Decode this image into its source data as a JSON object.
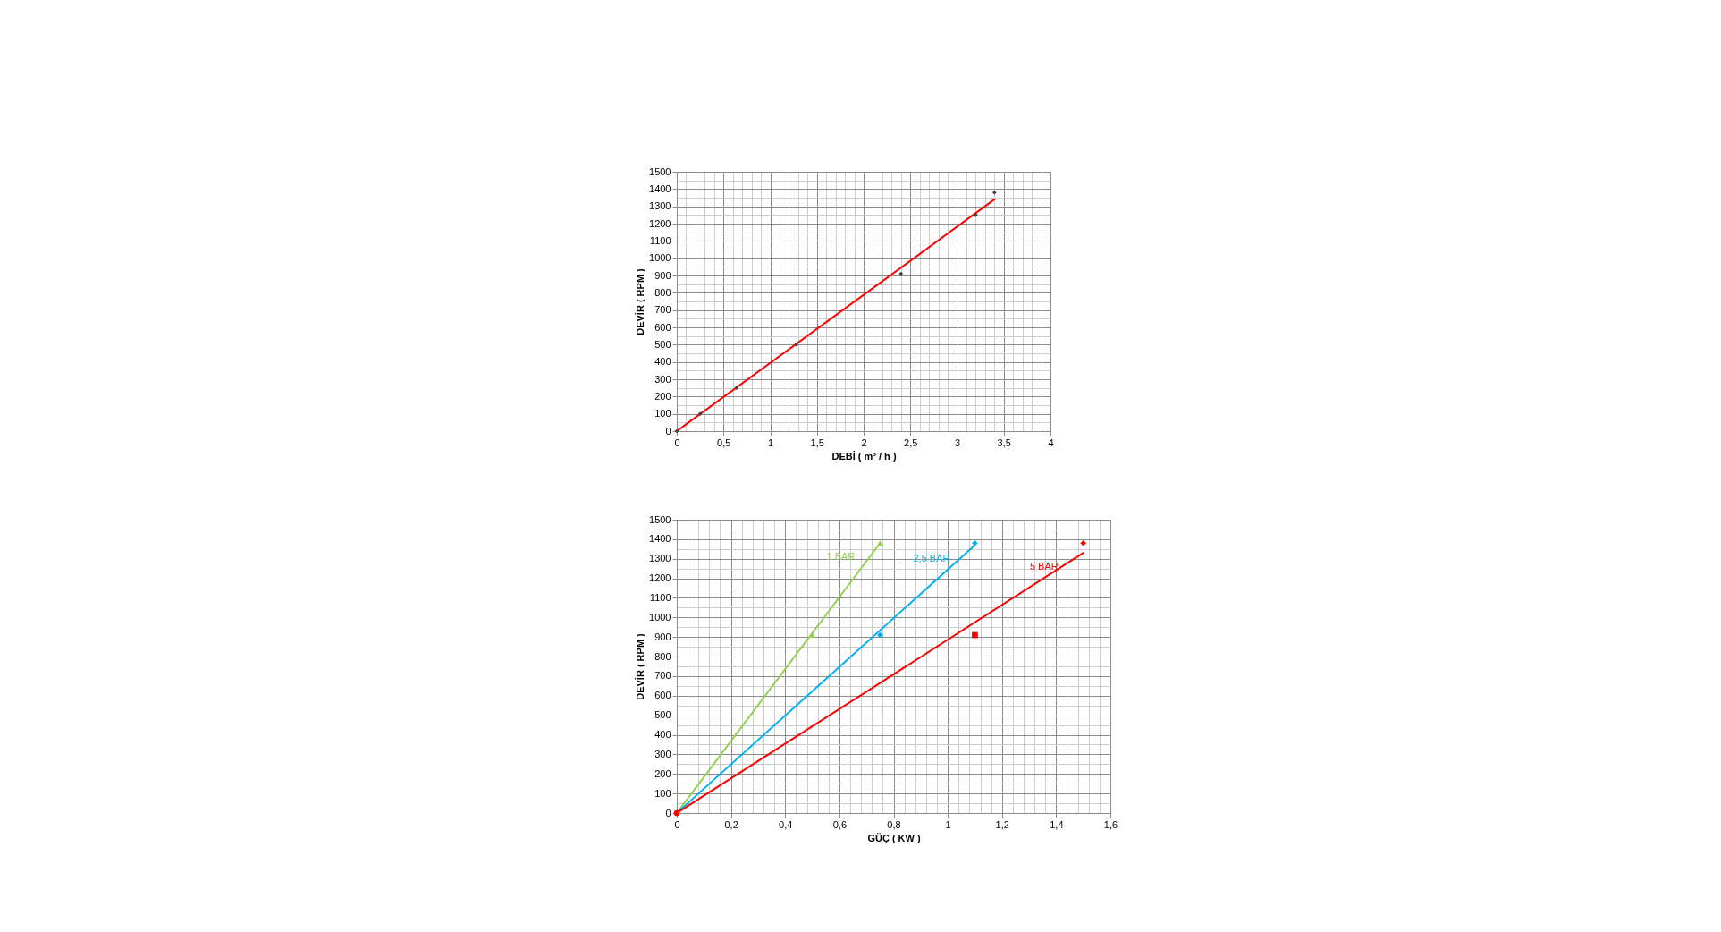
{
  "chart_data": [
    {
      "type": "scatter",
      "xlabel": "DEBİ ( m³ / h )",
      "ylabel": "DEVİR ( RPM )",
      "xlim": [
        0,
        4
      ],
      "ylim": [
        0,
        1500
      ],
      "grid": true,
      "xticks": [
        0,
        {
          "value": 0.1,
          "label": null
        },
        {
          "value": 0.2,
          "label": null
        },
        {
          "value": 0.3,
          "label": null
        },
        {
          "value": 0.4,
          "label": null
        },
        {
          "value": 0.5,
          "label": "0,5"
        },
        {
          "value": 0.6,
          "label": null
        },
        {
          "value": 0.7,
          "label": null
        },
        {
          "value": 0.8,
          "label": null
        },
        {
          "value": 0.9,
          "label": null
        },
        1,
        {
          "value": 1.1,
          "label": null
        },
        {
          "value": 1.2,
          "label": null
        },
        {
          "value": 1.3,
          "label": null
        },
        {
          "value": 1.4,
          "label": null
        },
        {
          "value": 1.5,
          "label": "1,5"
        },
        {
          "value": 1.6,
          "label": null
        },
        {
          "value": 1.7,
          "label": null
        },
        {
          "value": 1.8,
          "label": null
        },
        {
          "value": 1.9,
          "label": null
        },
        2,
        {
          "value": 2.1,
          "label": null
        },
        {
          "value": 2.2,
          "label": null
        },
        {
          "value": 2.3,
          "label": null
        },
        {
          "value": 2.4,
          "label": null
        },
        {
          "value": 2.5,
          "label": "2,5"
        },
        {
          "value": 2.6,
          "label": null
        },
        {
          "value": 2.7,
          "label": null
        },
        {
          "value": 2.8,
          "label": null
        },
        {
          "value": 2.9,
          "label": null
        },
        3,
        {
          "value": 3.1,
          "label": null
        },
        {
          "value": 3.2,
          "label": null
        },
        {
          "value": 3.3,
          "label": null
        },
        {
          "value": 3.4,
          "label": null
        },
        {
          "value": 3.5,
          "label": "3,5"
        },
        {
          "value": 3.6,
          "label": null
        },
        {
          "value": 3.7,
          "label": null
        },
        {
          "value": 3.8,
          "label": null
        },
        {
          "value": 3.9,
          "label": null
        },
        4
      ],
      "yticks": [
        0,
        {
          "value": 50,
          "label": null
        },
        100,
        {
          "value": 150,
          "label": null
        },
        200,
        {
          "value": 250,
          "label": null
        },
        300,
        {
          "value": 350,
          "label": null
        },
        400,
        {
          "value": 450,
          "label": null
        },
        500,
        {
          "value": 550,
          "label": null
        },
        600,
        {
          "value": 650,
          "label": null
        },
        700,
        {
          "value": 750,
          "label": null
        },
        800,
        {
          "value": 850,
          "label": null
        },
        900,
        {
          "value": 950,
          "label": null
        },
        1000,
        {
          "value": 1050,
          "label": null
        },
        1100,
        {
          "value": 1150,
          "label": null
        },
        1200,
        {
          "value": 1250,
          "label": null
        },
        1300,
        {
          "value": 1350,
          "label": null
        },
        1400,
        {
          "value": 1450,
          "label": null
        },
        1500
      ],
      "series": [
        {
          "type": "line",
          "color": "#ff0000",
          "x": [
            0,
            3.4
          ],
          "values": [
            0,
            1340
          ]
        },
        {
          "color": "#404040",
          "marker": "diamond",
          "x": [
            0,
            0.25,
            0.64,
            1.28,
            2.4,
            3.2,
            3.4
          ],
          "values": [
            0,
            100,
            250,
            500,
            910,
            1250,
            1380
          ]
        }
      ]
    },
    {
      "type": "line",
      "xlabel": "GÜÇ ( KW )",
      "ylabel": "DEVİR ( RPM )",
      "xlim": [
        0,
        1.6
      ],
      "ylim": [
        0,
        1500
      ],
      "grid": true,
      "xticks": [
        0,
        {
          "value": 0.04,
          "label": null
        },
        {
          "value": 0.08,
          "label": null
        },
        {
          "value": 0.12,
          "label": null
        },
        {
          "value": 0.16,
          "label": null
        },
        {
          "value": 0.2,
          "label": "0,2"
        },
        {
          "value": 0.24,
          "label": null
        },
        {
          "value": 0.28,
          "label": null
        },
        {
          "value": 0.32,
          "label": null
        },
        {
          "value": 0.36,
          "label": null
        },
        {
          "value": 0.4,
          "label": "0,4"
        },
        {
          "value": 0.44,
          "label": null
        },
        {
          "value": 0.48,
          "label": null
        },
        {
          "value": 0.52,
          "label": null
        },
        {
          "value": 0.56,
          "label": null
        },
        {
          "value": 0.6,
          "label": "0,6"
        },
        {
          "value": 0.64,
          "label": null
        },
        {
          "value": 0.68,
          "label": null
        },
        {
          "value": 0.72,
          "label": null
        },
        {
          "value": 0.76,
          "label": null
        },
        {
          "value": 0.8,
          "label": "0,8"
        },
        {
          "value": 0.84,
          "label": null
        },
        {
          "value": 0.88,
          "label": null
        },
        {
          "value": 0.92,
          "label": null
        },
        {
          "value": 0.96,
          "label": null
        },
        1,
        {
          "value": 1.04,
          "label": null
        },
        {
          "value": 1.08,
          "label": null
        },
        {
          "value": 1.12,
          "label": null
        },
        {
          "value": 1.16,
          "label": null
        },
        {
          "value": 1.2,
          "label": "1,2"
        },
        {
          "value": 1.24,
          "label": null
        },
        {
          "value": 1.28,
          "label": null
        },
        {
          "value": 1.32,
          "label": null
        },
        {
          "value": 1.36,
          "label": null
        },
        {
          "value": 1.4,
          "label": "1,4"
        },
        {
          "value": 1.44,
          "label": null
        },
        {
          "value": 1.48,
          "label": null
        },
        {
          "value": 1.52,
          "label": null
        },
        {
          "value": 1.56,
          "label": null
        },
        {
          "value": 1.6,
          "label": "1,6"
        }
      ],
      "yticks": [
        0,
        {
          "value": 50,
          "label": null
        },
        100,
        {
          "value": 150,
          "label": null
        },
        200,
        {
          "value": 250,
          "label": null
        },
        300,
        {
          "value": 350,
          "label": null
        },
        400,
        {
          "value": 450,
          "label": null
        },
        500,
        {
          "value": 550,
          "label": null
        },
        600,
        {
          "value": 650,
          "label": null
        },
        700,
        {
          "value": 750,
          "label": null
        },
        800,
        {
          "value": 850,
          "label": null
        },
        900,
        {
          "value": 950,
          "label": null
        },
        1000,
        {
          "value": 1050,
          "label": null
        },
        1100,
        {
          "value": 1150,
          "label": null
        },
        1200,
        {
          "value": 1250,
          "label": null
        },
        1300,
        {
          "value": 1350,
          "label": null
        },
        1400,
        {
          "value": 1450,
          "label": null
        },
        1500
      ],
      "series": [
        {
          "name": "1 BAR",
          "color": "#92d050",
          "x": [
            0,
            0.75
          ],
          "values": [
            0,
            1380
          ]
        },
        {
          "type": "scatter",
          "color": "#92d050",
          "marker": "triangle",
          "x": [
            0.5,
            0.75
          ],
          "values": [
            910,
            1380
          ]
        },
        {
          "name": "2,5 BAR",
          "color": "#00b0f0",
          "x": [
            0,
            1.1
          ],
          "values": [
            0,
            1370
          ]
        },
        {
          "type": "scatter",
          "color": "#00b0f0",
          "marker": "diamond",
          "x": [
            0.75,
            1.1
          ],
          "values": [
            910,
            1380
          ]
        },
        {
          "name": "5 BAR",
          "color": "#ff0000",
          "x": [
            0,
            1.5
          ],
          "values": [
            0,
            1330
          ]
        },
        {
          "type": "scatter",
          "color": "#ff0000",
          "marker": "circle",
          "x": [
            0
          ],
          "values": [
            0
          ]
        },
        {
          "type": "scatter",
          "color": "#ff0000",
          "marker": "square",
          "x": [
            1.1
          ],
          "values": [
            910
          ]
        },
        {
          "type": "scatter",
          "color": "#ff0000",
          "marker": "diamond",
          "x": [
            1.5
          ],
          "values": [
            1380
          ]
        }
      ]
    }
  ]
}
